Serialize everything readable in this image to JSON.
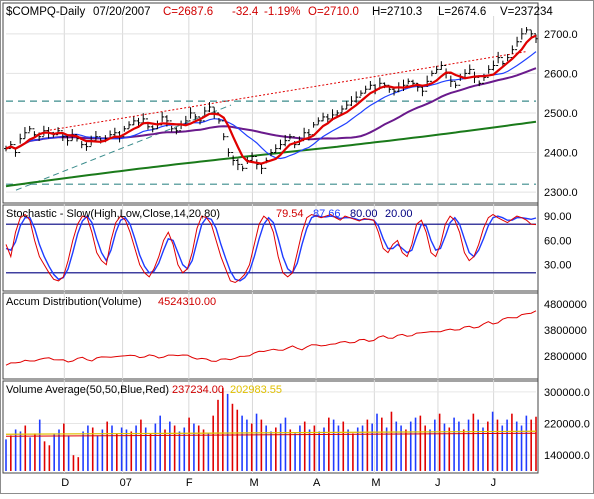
{
  "header": {
    "symbol": "$COMPQ-Daily",
    "date": "07/20/2007",
    "close": "C=2687.6",
    "change": "-32.4",
    "change_pct": "-1.19%",
    "open": "O=2710.0",
    "high": "H=2710.3",
    "low": "L=2674.6",
    "volume": "V=237234"
  },
  "colors": {
    "background": "#ffffff",
    "frame": "#8c8c8c",
    "up_text": "#d00000",
    "ma_fast": "#e00000",
    "ma_mid": "#2040ff",
    "ma_slow": "#6a1a8c",
    "ma_long": "#1a7a1a",
    "trend_dotted": "#e00000",
    "channel_dash": "#3b8c8c",
    "price_bar": "#000000",
    "stoch_k": "#e00000",
    "stoch_d": "#1f3cff",
    "stoch_hline": "#000080",
    "accum": "#e00000",
    "vol_up": "#1f3cff",
    "vol_down": "#e00000",
    "vol_avg_red": "#e00000",
    "vol_avg_yellow": "#e0c000"
  },
  "panels": {
    "stoch": {
      "title": "Stochastic - Slow(High,Low,Close,14,20,80)",
      "k": "79.54",
      "d": "87.66",
      "upper": "80.00",
      "lower": "20.00"
    },
    "accum": {
      "title": "Accum Distribution(Volume)",
      "value": "4524310.00"
    },
    "volume": {
      "title": "Volume Average(50,50,Blue,Red)",
      "value": "237234.00",
      "avg": "202983.55"
    }
  },
  "chart_data": [
    {
      "type": "line",
      "panel": "price",
      "x_ticks": [
        "D",
        "07",
        "F",
        "M",
        "A",
        "M",
        "J",
        "J"
      ],
      "y_ticks": [
        "2300.0",
        "2400.0",
        "2500.0",
        "2600.0",
        "2700.0"
      ],
      "ylim": [
        2280,
        2735
      ],
      "channel_lines": [
        2530,
        2320
      ],
      "trendline": {
        "from": [
          "Nov-2006",
          2455
        ],
        "to": [
          "Jul-2007",
          2655
        ]
      },
      "closes": [
        2410,
        2420,
        2400,
        2435,
        2450,
        2460,
        2445,
        2440,
        2455,
        2450,
        2445,
        2455,
        2440,
        2430,
        2445,
        2435,
        2420,
        2415,
        2430,
        2440,
        2430,
        2435,
        2445,
        2450,
        2440,
        2460,
        2470,
        2480,
        2475,
        2485,
        2465,
        2460,
        2470,
        2490,
        2480,
        2460,
        2455,
        2470,
        2480,
        2500,
        2490,
        2480,
        2505,
        2515,
        2500,
        2480,
        2440,
        2400,
        2380,
        2370,
        2360,
        2380,
        2390,
        2370,
        2360,
        2380,
        2400,
        2410,
        2420,
        2430,
        2440,
        2420,
        2430,
        2450,
        2445,
        2470,
        2480,
        2490,
        2485,
        2495,
        2500,
        2510,
        2520,
        2530,
        2540,
        2550,
        2560,
        2570,
        2560,
        2575,
        2570,
        2560,
        2555,
        2565,
        2570,
        2580,
        2575,
        2565,
        2555,
        2580,
        2600,
        2610,
        2620,
        2600,
        2580,
        2570,
        2590,
        2600,
        2610,
        2590,
        2575,
        2590,
        2610,
        2620,
        2640,
        2625,
        2640,
        2660,
        2680,
        2700,
        2710,
        2700,
        2687.6
      ],
      "series": [
        {
          "name": "",
          "color": "#e00000"
        },
        {
          "name": "",
          "color": "#2040ff"
        },
        {
          "name": "",
          "color": "#6a1a8c"
        },
        {
          "name": "",
          "color": "#1a7a1a"
        }
      ]
    },
    {
      "type": "line",
      "panel": "stochastic",
      "y_ticks": [
        "30.00",
        "60.00",
        "90.00"
      ],
      "ylim": [
        0,
        100
      ],
      "hlines": [
        80,
        20
      ],
      "k_points": [
        55,
        40,
        70,
        88,
        92,
        85,
        60,
        40,
        30,
        20,
        12,
        10,
        15,
        35,
        60,
        80,
        90,
        88,
        70,
        45,
        35,
        30,
        60,
        82,
        90,
        85,
        70,
        50,
        30,
        20,
        15,
        25,
        40,
        60,
        70,
        55,
        30,
        20,
        25,
        45,
        75,
        90,
        88,
        80,
        60,
        40,
        25,
        10,
        8,
        12,
        18,
        30,
        55,
        80,
        90,
        85,
        70,
        40,
        20,
        15,
        20,
        45,
        70,
        88,
        92,
        90,
        88,
        90,
        92,
        88,
        85,
        90,
        88,
        86,
        84,
        87,
        86,
        85,
        70,
        50,
        45,
        55,
        60,
        45,
        40,
        55,
        80,
        85,
        70,
        45,
        40,
        55,
        80,
        90,
        85,
        70,
        45,
        35,
        40,
        55,
        75,
        88,
        92,
        88,
        85,
        82,
        86,
        90,
        88,
        85,
        80,
        79.54
      ],
      "d_points": [
        50,
        48,
        58,
        78,
        88,
        88,
        75,
        55,
        40,
        28,
        18,
        12,
        14,
        25,
        45,
        68,
        84,
        90,
        82,
        62,
        45,
        35,
        48,
        70,
        85,
        88,
        80,
        62,
        42,
        28,
        20,
        22,
        32,
        48,
        62,
        60,
        45,
        30,
        25,
        35,
        58,
        80,
        88,
        86,
        75,
        55,
        38,
        22,
        12,
        10,
        14,
        22,
        40,
        62,
        80,
        88,
        82,
        62,
        40,
        25,
        20,
        32,
        55,
        75,
        88,
        91,
        89,
        89,
        90,
        89,
        87,
        88,
        88,
        87,
        85,
        86,
        86,
        85,
        78,
        62,
        50,
        50,
        55,
        50,
        45,
        48,
        65,
        80,
        78,
        60,
        48,
        50,
        65,
        82,
        88,
        80,
        62,
        45,
        40,
        48,
        62,
        78,
        88,
        90,
        88,
        85,
        85,
        88,
        88,
        87,
        86,
        87.66
      ]
    },
    {
      "type": "line",
      "panel": "accumulation-distribution",
      "y_ticks": [
        "2800000",
        "3800000",
        "4800000"
      ],
      "ylim": [
        2000000,
        5100000
      ],
      "values": [
        2450000,
        2500000,
        2550000,
        2600000,
        2620000,
        2580000,
        2640000,
        2700000,
        2680000,
        2720000,
        2700000,
        2660000,
        2620000,
        2580000,
        2650000,
        2700000,
        2720000,
        2680000,
        2640000,
        2700000,
        2750000,
        2800000,
        2770000,
        2740000,
        2800000,
        2850000,
        2820000,
        2780000,
        2760000,
        2800000,
        2820000,
        2790000,
        2760000,
        2780000,
        2800000,
        2830000,
        2860000,
        2840000,
        2800000,
        2760000,
        2720000,
        2690000,
        2660000,
        2640000,
        2620000,
        2650000,
        2680000,
        2700000,
        2720000,
        2750000,
        2800000,
        2850000,
        2900000,
        2950000,
        3000000,
        3050000,
        3030000,
        3010000,
        3060000,
        3120000,
        3150000,
        3100000,
        3080000,
        3140000,
        3200000,
        3250000,
        3220000,
        3180000,
        3230000,
        3300000,
        3350000,
        3320000,
        3300000,
        3360000,
        3420000,
        3400000,
        3380000,
        3430000,
        3500000,
        3550000,
        3520000,
        3500000,
        3560000,
        3620000,
        3600000,
        3580000,
        3640000,
        3700000,
        3750000,
        3720000,
        3700000,
        3760000,
        3820000,
        3800000,
        3780000,
        3850000,
        3920000,
        3900000,
        3880000,
        3950000,
        4020000,
        4080000,
        4050000,
        4100000,
        4180000,
        4250000,
        4300000,
        4280000,
        4350000,
        4420000,
        4480000,
        4524310
      ]
    },
    {
      "type": "bar",
      "panel": "volume",
      "y_ticks": [
        "140000.0",
        "220000.0",
        "300000.0"
      ],
      "ylim": [
        100000,
        320000
      ],
      "avg": 202983.55,
      "volumes": [
        180000,
        190000,
        205000,
        200000,
        215000,
        185000,
        195000,
        230000,
        175000,
        165000,
        195000,
        205000,
        220000,
        190000,
        140000,
        135000,
        200000,
        215000,
        210000,
        190000,
        205000,
        225000,
        215000,
        195000,
        210000,
        205000,
        200000,
        215000,
        230000,
        210000,
        195000,
        220000,
        240000,
        205000,
        225000,
        215000,
        200000,
        210000,
        235000,
        220000,
        215000,
        205000,
        195000,
        240000,
        280000,
        310000,
        295000,
        270000,
        255000,
        240000,
        230000,
        220000,
        245000,
        230000,
        215000,
        200000,
        210000,
        220000,
        235000,
        205000,
        195000,
        215000,
        225000,
        205000,
        215000,
        200000,
        210000,
        235000,
        230000,
        215000,
        225000,
        205000,
        195000,
        210000,
        215000,
        230000,
        220000,
        245000,
        235000,
        210000,
        250000,
        225000,
        215000,
        205000,
        225000,
        235000,
        240000,
        215000,
        205000,
        230000,
        245000,
        220000,
        210000,
        235000,
        225000,
        205000,
        230000,
        245000,
        230000,
        210000,
        225000,
        250000,
        230000,
        215000,
        230000,
        245000,
        225000,
        215000,
        240000,
        230000,
        237234
      ],
      "up": [
        1,
        0,
        1,
        1,
        0,
        1,
        0,
        1,
        0,
        0,
        1,
        1,
        0,
        1,
        0,
        0,
        1,
        1,
        0,
        1,
        1,
        0,
        1,
        0,
        1,
        1,
        0,
        1,
        0,
        1,
        0,
        1,
        1,
        0,
        1,
        0,
        1,
        1,
        0,
        1,
        0,
        0,
        1,
        0,
        0,
        0,
        1,
        0,
        0,
        1,
        1,
        0,
        1,
        0,
        1,
        1,
        0,
        1,
        1,
        0,
        1,
        1,
        0,
        1,
        0,
        1,
        1,
        0,
        1,
        1,
        0,
        1,
        0,
        1,
        1,
        0,
        1,
        1,
        0,
        1,
        0,
        1,
        1,
        0,
        1,
        1,
        0,
        0,
        1,
        1,
        0,
        1,
        0,
        1,
        1,
        0,
        1,
        0,
        1,
        1,
        0,
        1,
        0,
        1,
        1,
        0,
        1,
        1,
        1,
        0,
        0
      ]
    }
  ]
}
